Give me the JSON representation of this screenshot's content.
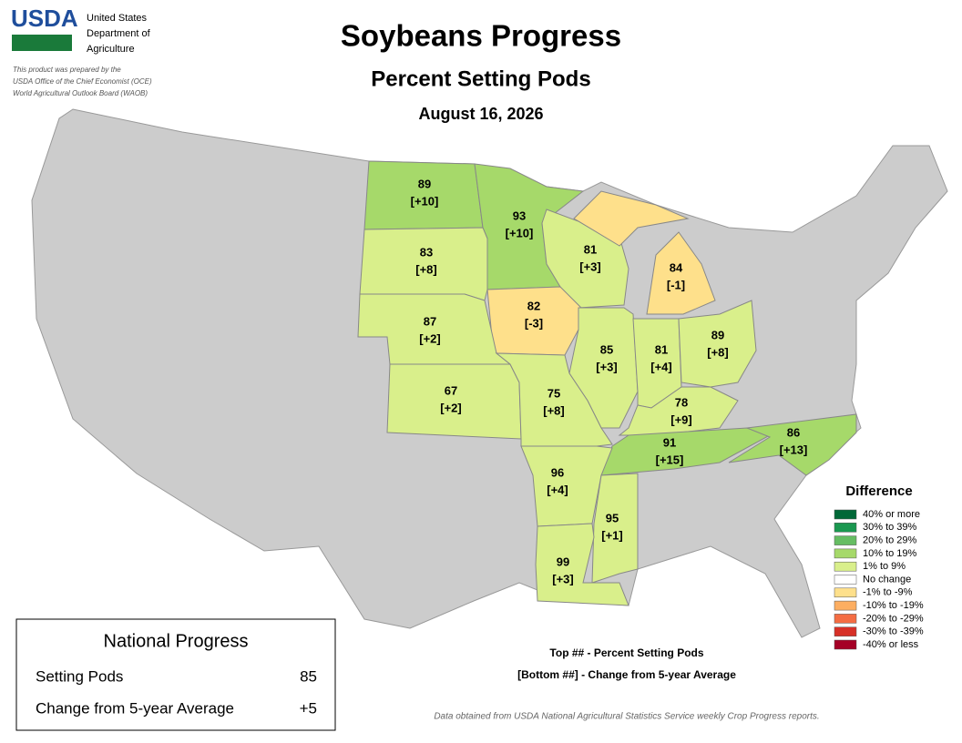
{
  "header": {
    "logo": "USDA",
    "agency": [
      "United States",
      "Department of",
      "Agriculture"
    ],
    "note": [
      "This product was prepared by the",
      "USDA Office of the Chief Economist (OCE)",
      "World Agricultural Outlook Board (WAOB)"
    ],
    "title": "Soybeans Progress",
    "subtitle": "Percent Setting Pods",
    "date": "August 16, 2026"
  },
  "states": [
    {
      "value": 89,
      "change": "[+10]",
      "color": "#a6d96a"
    },
    {
      "value": 93,
      "change": "[+10]",
      "color": "#a6d96a"
    },
    {
      "value": 83,
      "change": "[+8]",
      "color": "#d9ef8b"
    },
    {
      "value": 81,
      "change": "[+3]",
      "color": "#d9ef8b"
    },
    {
      "value": 84,
      "change": "[-1]",
      "color": "#fee08b"
    },
    {
      "value": 82,
      "change": "[-3]",
      "color": "#fee08b"
    },
    {
      "value": 87,
      "change": "[+2]",
      "color": "#d9ef8b"
    },
    {
      "value": 85,
      "change": "[+3]",
      "color": "#d9ef8b"
    },
    {
      "value": 81,
      "change": "[+4]",
      "color": "#d9ef8b"
    },
    {
      "value": 89,
      "change": "[+8]",
      "color": "#d9ef8b"
    },
    {
      "value": 67,
      "change": "[+2]",
      "color": "#d9ef8b"
    },
    {
      "value": 75,
      "change": "[+8]",
      "color": "#d9ef8b"
    },
    {
      "value": 78,
      "change": "[+9]",
      "color": "#d9ef8b"
    },
    {
      "value": 91,
      "change": "[+15]",
      "color": "#a6d96a"
    },
    {
      "value": 86,
      "change": "[+13]",
      "color": "#a6d96a"
    },
    {
      "value": 96,
      "change": "[+4]",
      "color": "#d9ef8b"
    },
    {
      "value": 95,
      "change": "[+1]",
      "color": "#d9ef8b"
    },
    {
      "value": 99,
      "change": "[+3]",
      "color": "#d9ef8b"
    }
  ],
  "legend": {
    "title": "Difference",
    "items": [
      {
        "label": "40% or more",
        "color": "#006837"
      },
      {
        "label": "30% to 39%",
        "color": "#1a9850"
      },
      {
        "label": "20% to 29%",
        "color": "#66bd63"
      },
      {
        "label": "10% to 19%",
        "color": "#a6d96a"
      },
      {
        "label": "1% to 9%",
        "color": "#d9ef8b"
      },
      {
        "label": "No change",
        "color": "#ffffff"
      },
      {
        "label": "-1% to -9%",
        "color": "#fee08b"
      },
      {
        "label": "-10% to -19%",
        "color": "#fdae61"
      },
      {
        "label": "-20% to -29%",
        "color": "#f46d43"
      },
      {
        "label": "-30% to -39%",
        "color": "#d73027"
      },
      {
        "label": "-40% or less",
        "color": "#a50026"
      }
    ]
  },
  "key": [
    "Top ## - Percent Setting Pods",
    "[Bottom ##] - Change from 5-year Average"
  ],
  "national": {
    "title": "National Progress",
    "rows": [
      {
        "label": "Setting Pods",
        "value": "85"
      },
      {
        "label": "Change from 5-year Average",
        "value": "+5"
      }
    ]
  },
  "source": "Data obtained from USDA National Agricultural Statistics Service weekly Crop Progress reports."
}
